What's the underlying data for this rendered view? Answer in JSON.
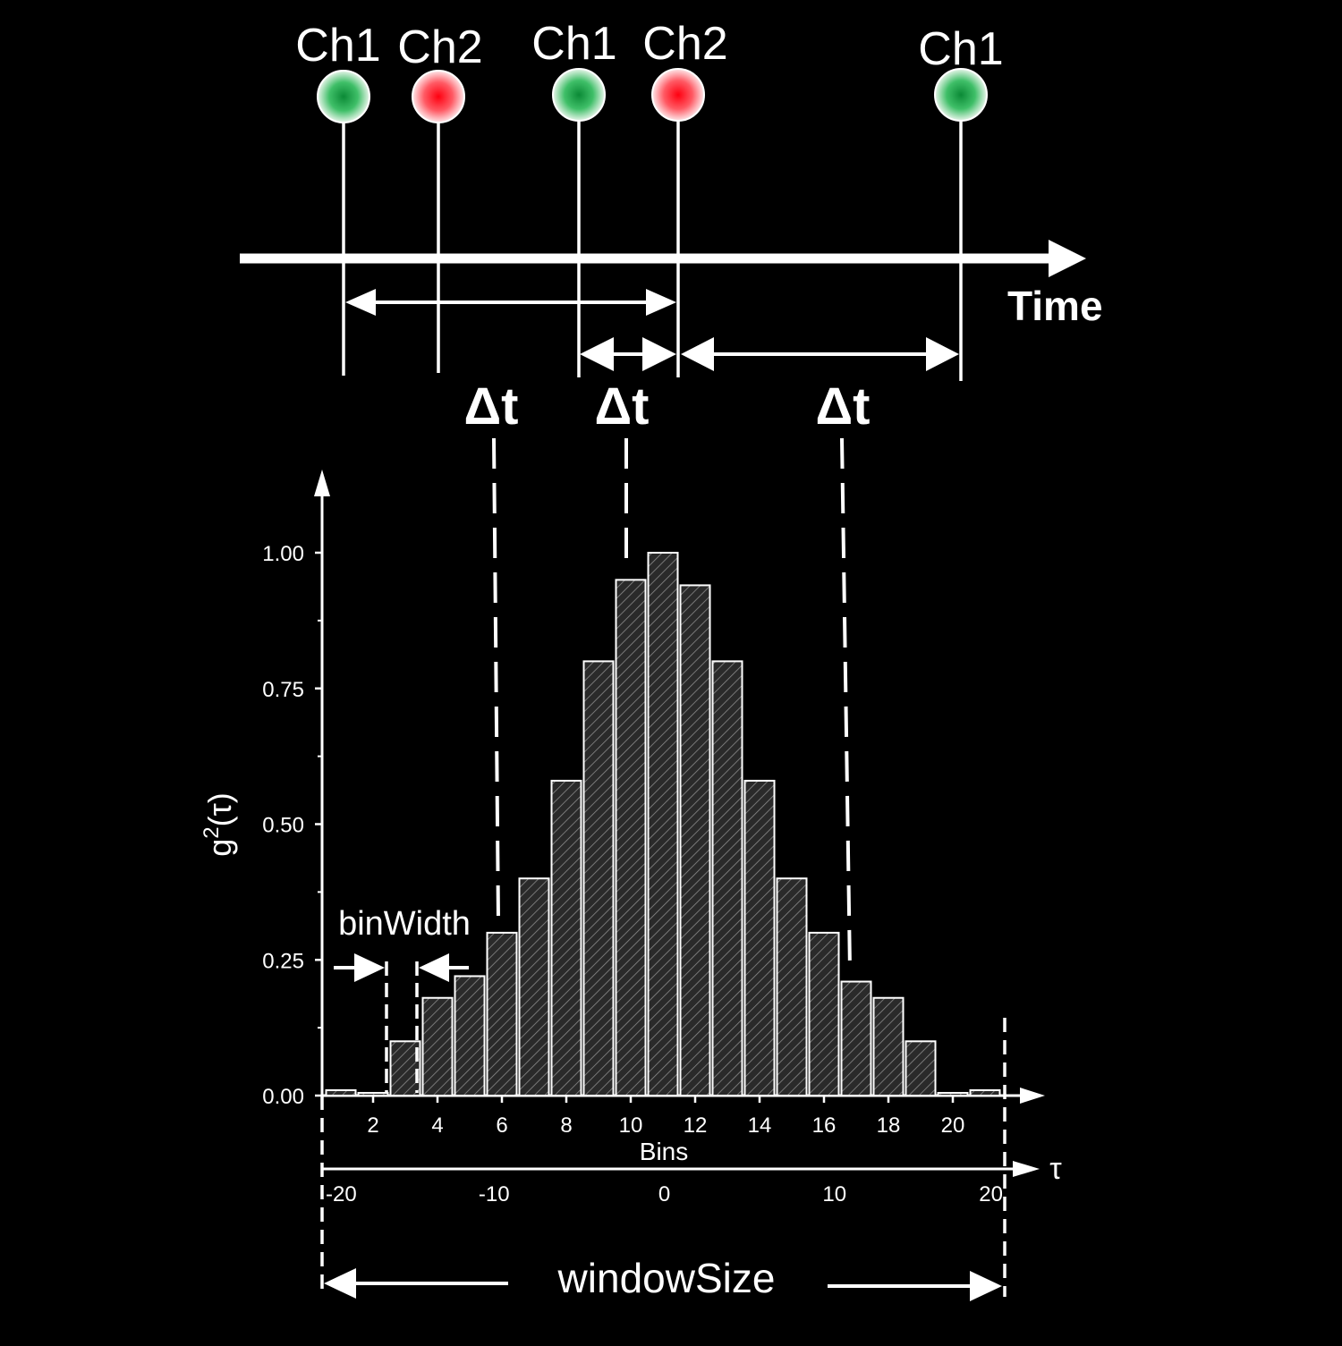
{
  "colors": {
    "background": "#000000",
    "foreground": "#ffffff",
    "ch1": "#1fa849",
    "ch2": "#ff1a2a",
    "bar_fill": "#2a2a2a"
  },
  "timeline": {
    "events": [
      {
        "label": "Ch1",
        "channel": "ch1"
      },
      {
        "label": "Ch2",
        "channel": "ch2"
      },
      {
        "label": "Ch1",
        "channel": "ch1"
      },
      {
        "label": "Ch2",
        "channel": "ch2"
      },
      {
        "label": "Ch1",
        "channel": "ch1"
      }
    ],
    "axis_label": "Time",
    "delta_label": "Δt"
  },
  "chart_data": {
    "type": "bar",
    "x": [
      1,
      2,
      3,
      4,
      5,
      6,
      7,
      8,
      9,
      10,
      11,
      12,
      13,
      14,
      15,
      16,
      17,
      18,
      19,
      20,
      21
    ],
    "values": [
      0.01,
      0.005,
      0.1,
      0.18,
      0.22,
      0.3,
      0.4,
      0.58,
      0.8,
      0.95,
      1.0,
      0.94,
      0.8,
      0.58,
      0.4,
      0.3,
      0.21,
      0.18,
      0.1,
      0.005,
      0.01
    ],
    "xlabel": "Bins",
    "ylabel": "g",
    "ylabel_sup": "2",
    "ylabel_arg": "(τ)",
    "ylim": [
      0,
      1.0
    ],
    "yticks": [
      "0.00",
      "0.25",
      "0.50",
      "0.75",
      "1.00"
    ],
    "xticks": [
      "2",
      "4",
      "6",
      "8",
      "10",
      "12",
      "14",
      "16",
      "18",
      "20"
    ],
    "tau_axis": {
      "label": "τ",
      "ticks": [
        "-20",
        "-10",
        "0",
        "10",
        "20"
      ]
    }
  },
  "annotations": {
    "bin_width": "binWidth",
    "window_size": "windowSize"
  }
}
